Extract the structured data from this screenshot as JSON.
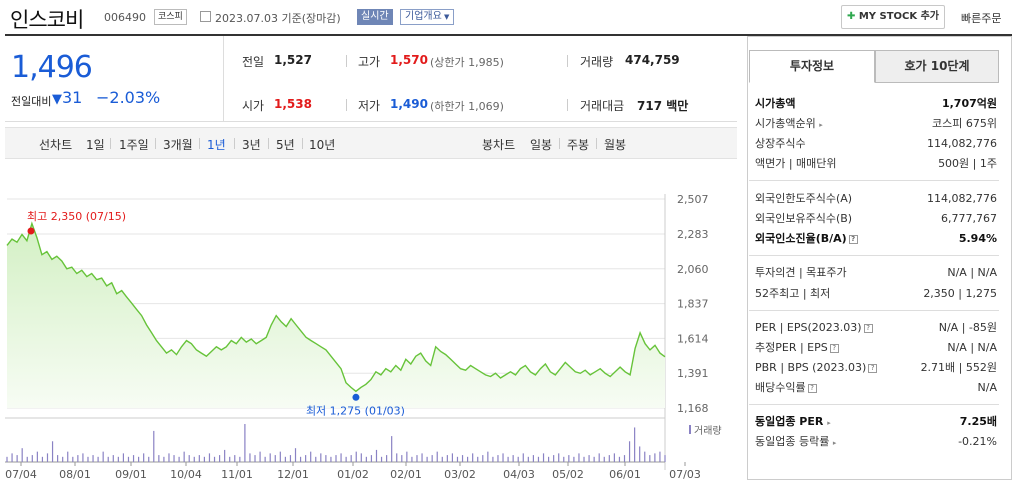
{
  "header": {
    "company_name": "인스코비",
    "code": "006490",
    "market_tag": "코스피",
    "date_text": "2023.07.03 기준(장마감)",
    "live_label": "실시간",
    "company_info_label": "기업개요",
    "my_stock_label": "MY STOCK 추가",
    "quick_order_label": "빠른주문"
  },
  "price": {
    "current": "1,496",
    "compare_label": "전일대비",
    "change": "31",
    "change_pct": "−2.03%"
  },
  "stats": {
    "prev_label": "전일",
    "prev": "1,527",
    "high_label": "고가",
    "high": "1,570",
    "upper_limit": "(상한가 1,985)",
    "volume_label": "거래량",
    "volume": "474,759",
    "open_label": "시가",
    "open": "1,538",
    "low_label": "저가",
    "low": "1,490",
    "lower_limit": "(하한가 1,069)",
    "amount_label": "거래대금",
    "amount": "717 백만"
  },
  "periods": {
    "line_label": "선차트",
    "items": [
      "1일",
      "1주일",
      "3개월",
      "1년",
      "3년",
      "5년",
      "10년"
    ],
    "selected": "1년",
    "candle_label": "봉차트",
    "candle_items": [
      "일봉",
      "주봉",
      "월봉"
    ]
  },
  "chart_data": {
    "type": "area",
    "x_ticks": [
      "07/04",
      "08/01",
      "09/01",
      "10/04",
      "11/01",
      "12/01",
      "01/02",
      "02/01",
      "03/02",
      "04/03",
      "05/02",
      "06/01",
      "07/03"
    ],
    "y_ticks": [
      "2,507",
      "2,283",
      "2,060",
      "1,837",
      "1,614",
      "1,391",
      "1,168"
    ],
    "ylim": [
      1168,
      2507
    ],
    "max_label": "최고 2,350 (07/15)",
    "min_label": "최저 1,275 (01/03)",
    "volume_label": "거래량",
    "series": [
      {
        "values": [
          2210,
          2250,
          2230,
          2280,
          2240,
          2350,
          2260,
          2150,
          2170,
          2120,
          2140,
          2110,
          2060,
          2070,
          2030,
          2050,
          2010,
          2030,
          1990,
          2000,
          1950,
          1970,
          1900,
          1920,
          1880,
          1840,
          1800,
          1760,
          1700,
          1650,
          1600,
          1560,
          1520,
          1540,
          1510,
          1560,
          1600,
          1580,
          1540,
          1520,
          1500,
          1530,
          1560,
          1540,
          1560,
          1600,
          1580,
          1620,
          1590,
          1610,
          1580,
          1600,
          1620,
          1700,
          1760,
          1720,
          1690,
          1740,
          1700,
          1660,
          1620,
          1600,
          1580,
          1560,
          1540,
          1500,
          1460,
          1420,
          1330,
          1300,
          1275,
          1300,
          1320,
          1350,
          1400,
          1380,
          1420,
          1400,
          1440,
          1410,
          1480,
          1450,
          1500,
          1520,
          1470,
          1440,
          1560,
          1530,
          1510,
          1480,
          1450,
          1420,
          1410,
          1440,
          1420,
          1400,
          1380,
          1370,
          1390,
          1360,
          1380,
          1400,
          1380,
          1420,
          1440,
          1400,
          1380,
          1420,
          1450,
          1400,
          1380,
          1420,
          1460,
          1430,
          1400,
          1390,
          1410,
          1380,
          1400,
          1420,
          1390,
          1370,
          1400,
          1430,
          1400,
          1380,
          1550,
          1650,
          1580,
          1540,
          1570,
          1520,
          1496
        ]
      }
    ],
    "volume": [
      3,
      5,
      4,
      8,
      3,
      4,
      6,
      3,
      5,
      12,
      4,
      3,
      6,
      3,
      4,
      5,
      3,
      4,
      3,
      6,
      3,
      4,
      3,
      5,
      3,
      4,
      3,
      5,
      3,
      18,
      4,
      3,
      5,
      4,
      3,
      6,
      4,
      3,
      4,
      3,
      5,
      3,
      4,
      7,
      3,
      4,
      3,
      22,
      5,
      4,
      6,
      3,
      5,
      4,
      6,
      3,
      4,
      8,
      3,
      4,
      6,
      3,
      5,
      4,
      3,
      4,
      5,
      3,
      4,
      6,
      5,
      3,
      4,
      7,
      3,
      4,
      15,
      5,
      4,
      6,
      3,
      4,
      5,
      3,
      4,
      6,
      3,
      4,
      5,
      3,
      4,
      3,
      5,
      3,
      4,
      6,
      3,
      4,
      5,
      3,
      4,
      3,
      5,
      3,
      4,
      3,
      5,
      3,
      4,
      5,
      3,
      4,
      3,
      5,
      3,
      4,
      3,
      5,
      3,
      4,
      5,
      3,
      4,
      12,
      20,
      9,
      6,
      4,
      5,
      6,
      4
    ]
  },
  "invest": {
    "tab_invest": "투자정보",
    "tab_hoga": "호가 10단계",
    "market_cap_label": "시가총액",
    "market_cap": "1,707억원",
    "cap_rank_label": "시가총액순위",
    "cap_rank": "코스피 675위",
    "shares_label": "상장주식수",
    "shares": "114,082,776",
    "par_label": "액면가 | 매매단위",
    "par": "500원 | 1주",
    "foreign_limit_label": "외국인한도주식수(A)",
    "foreign_limit": "114,082,776",
    "foreign_hold_label": "외국인보유주식수(B)",
    "foreign_hold": "6,777,767",
    "foreign_ratio_label": "외국인소진율(B/A)",
    "foreign_ratio": "5.94%",
    "opinion_label": "투자의견 | 목표주가",
    "opinion": "N/A | N/A",
    "w52_label": "52주최고 | 최저",
    "w52": "2,350 | 1,275",
    "per_label": "PER | EPS(2023.03)",
    "per": "N/A | -85원",
    "est_label": "추정PER | EPS",
    "est": "N/A | N/A",
    "pbr_label": "PBR | BPS (2023.03)",
    "pbr": "2.71배 | 552원",
    "div_label": "배당수익률",
    "div": "N/A",
    "sector_per_label": "동일업종 PER",
    "sector_per": "7.25배",
    "sector_chg_label": "동일업종 등락률",
    "sector_chg": "-0.21%"
  }
}
